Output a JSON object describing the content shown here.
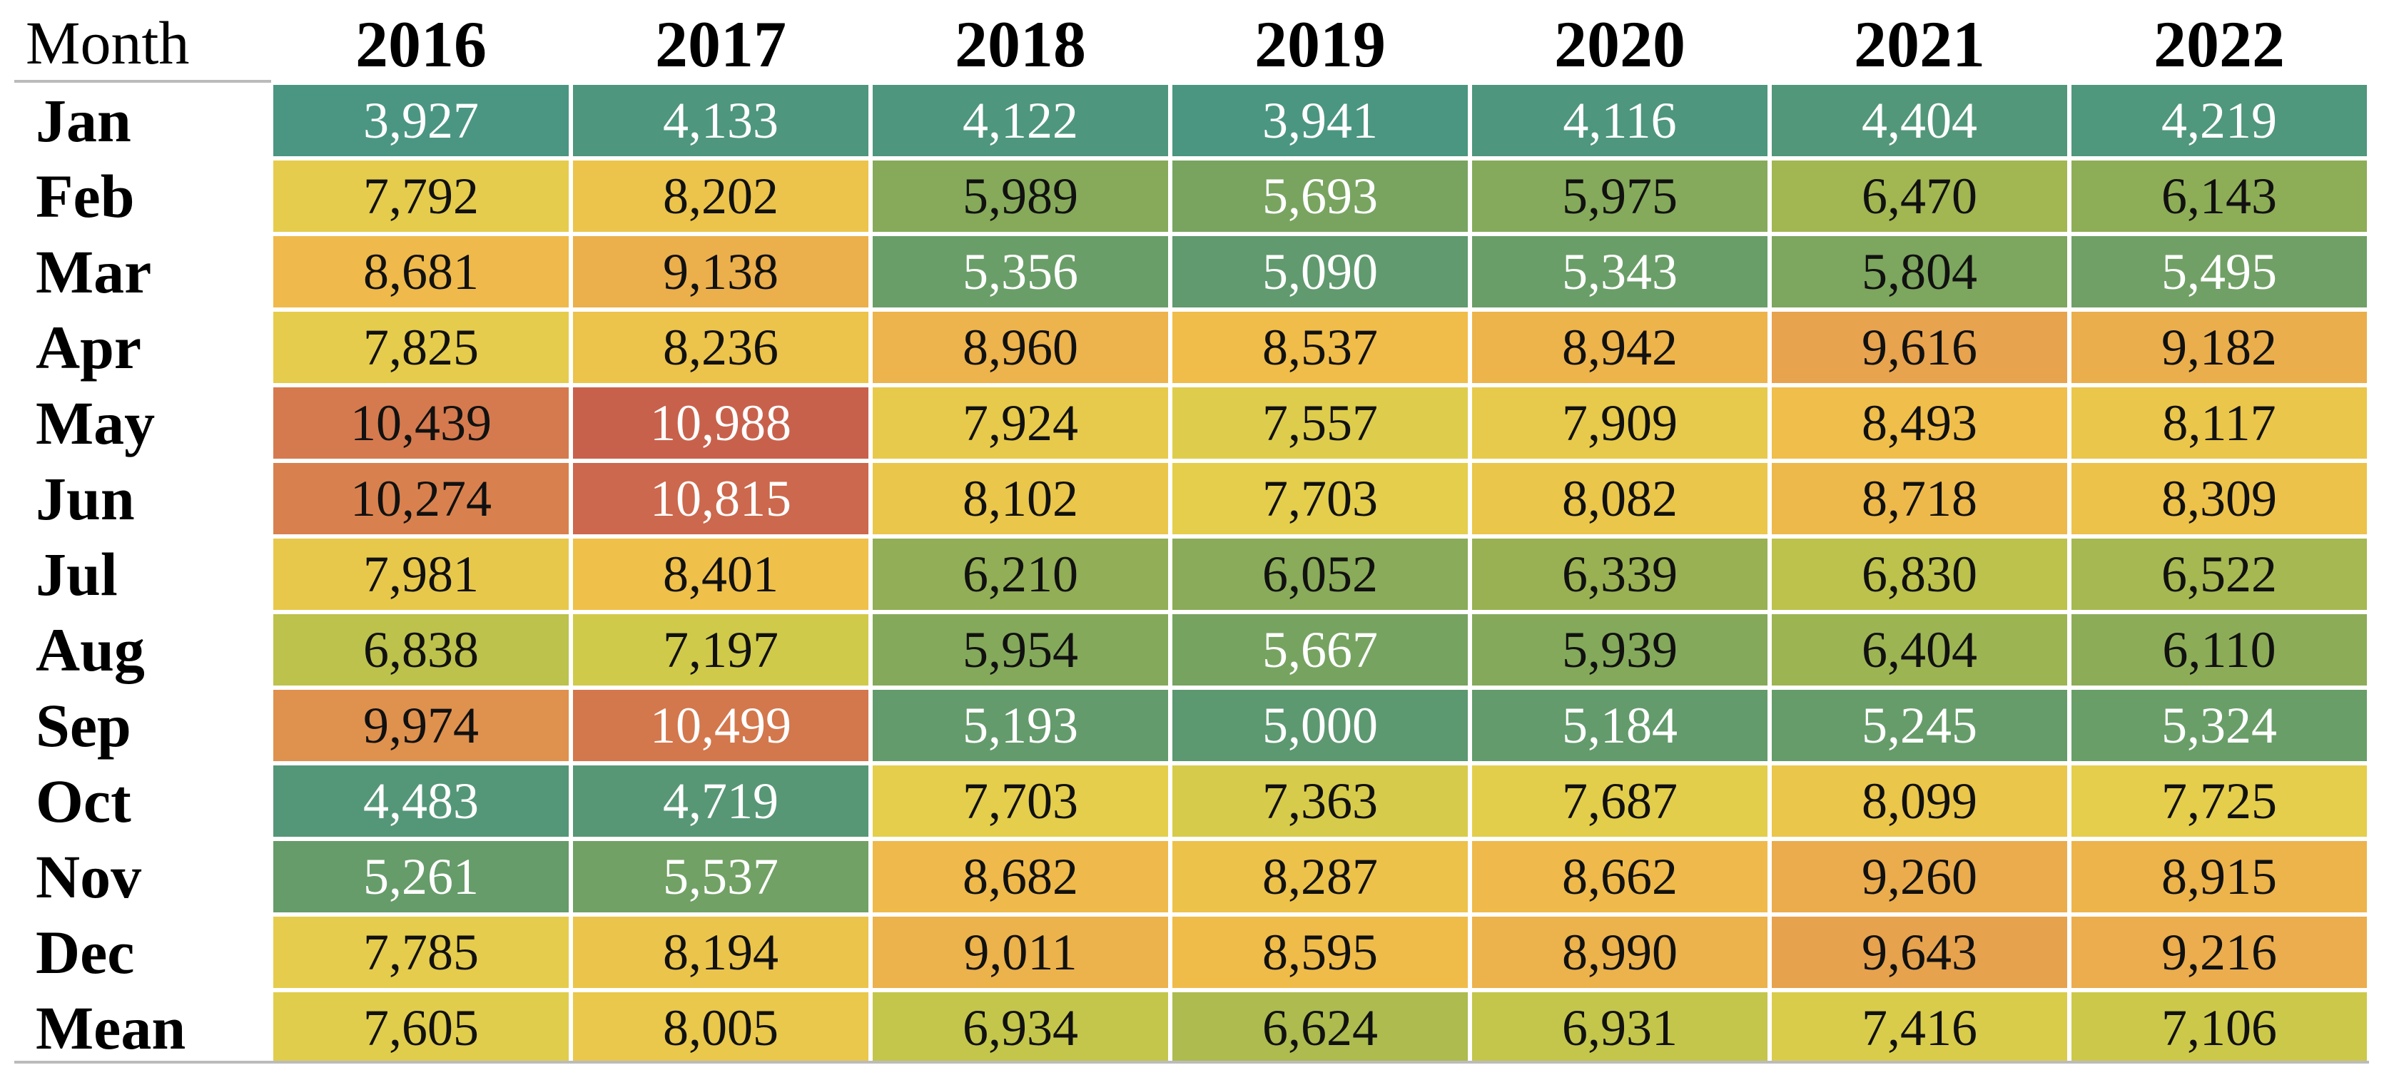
{
  "table": {
    "header": [
      "Month",
      "2016",
      "2017",
      "2018",
      "2019",
      "2020",
      "2021",
      "2022"
    ],
    "rows": [
      [
        "Jan",
        "3,927",
        "4,133",
        "4,122",
        "3,941",
        "4,116",
        "4,404",
        "4,219"
      ],
      [
        "Feb",
        "7,792",
        "8,202",
        "5,989",
        "5,693",
        "5,975",
        "6,470",
        "6,143"
      ],
      [
        "Mar",
        "8,681",
        "9,138",
        "5,356",
        "5,090",
        "5,343",
        "5,804",
        "5,495"
      ],
      [
        "Apr",
        "7,825",
        "8,236",
        "8,960",
        "8,537",
        "8,942",
        "9,616",
        "9,182"
      ],
      [
        "May",
        "10,439",
        "10,988",
        "7,924",
        "7,557",
        "7,909",
        "8,493",
        "8,117"
      ],
      [
        "Jun",
        "10,274",
        "10,815",
        "8,102",
        "7,703",
        "8,082",
        "8,718",
        "8,309"
      ],
      [
        "Jul",
        "7,981",
        "8,401",
        "6,210",
        "6,052",
        "6,339",
        "6,830",
        "6,522"
      ],
      [
        "Aug",
        "6,838",
        "7,197",
        "5,954",
        "5,667",
        "5,939",
        "6,404",
        "6,110"
      ],
      [
        "Sep",
        "9,974",
        "10,499",
        "5,193",
        "5,000",
        "5,184",
        "5,245",
        "5,324"
      ],
      [
        "Oct",
        "4,483",
        "4,719",
        "7,703",
        "7,363",
        "7,687",
        "8,099",
        "7,725"
      ],
      [
        "Nov",
        "5,261",
        "5,537",
        "8,682",
        "8,287",
        "8,662",
        "9,260",
        "8,915"
      ],
      [
        "Dec",
        "7,785",
        "8,194",
        "9,011",
        "8,595",
        "8,990",
        "9,643",
        "9,216"
      ],
      [
        "Mean",
        "7,605",
        "8,005",
        "6,934",
        "6,624",
        "6,931",
        "7,416",
        "7,106"
      ]
    ]
  }
}
